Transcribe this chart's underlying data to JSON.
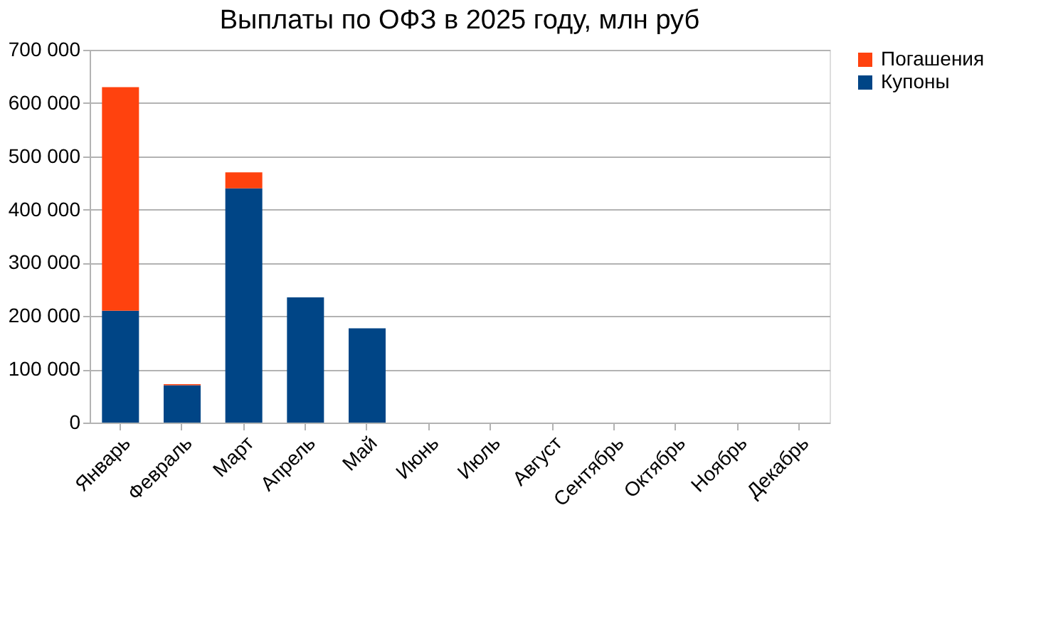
{
  "chart_data": {
    "type": "bar",
    "title": "Выплаты по ОФЗ в 2025 году, млн руб",
    "stacked": true,
    "categories": [
      "Январь",
      "Февраль",
      "Март",
      "Апрель",
      "Май",
      "Июнь",
      "Июль",
      "Август",
      "Сентябрь",
      "Октябрь",
      "Ноябрь",
      "Декабрь"
    ],
    "series": [
      {
        "name": "Купоны",
        "color": "#004586",
        "values": [
          210000,
          70000,
          440000,
          235000,
          177000,
          0,
          0,
          0,
          0,
          0,
          0,
          0
        ]
      },
      {
        "name": "Погашения",
        "color": "#ff420e",
        "values": [
          420000,
          2000,
          30000,
          0,
          0,
          0,
          0,
          0,
          0,
          0,
          0,
          0
        ]
      }
    ],
    "ylim": [
      0,
      700000
    ],
    "yticks": [
      0,
      100000,
      200000,
      300000,
      400000,
      500000,
      600000,
      700000
    ],
    "grid": "y",
    "legend": "right"
  }
}
